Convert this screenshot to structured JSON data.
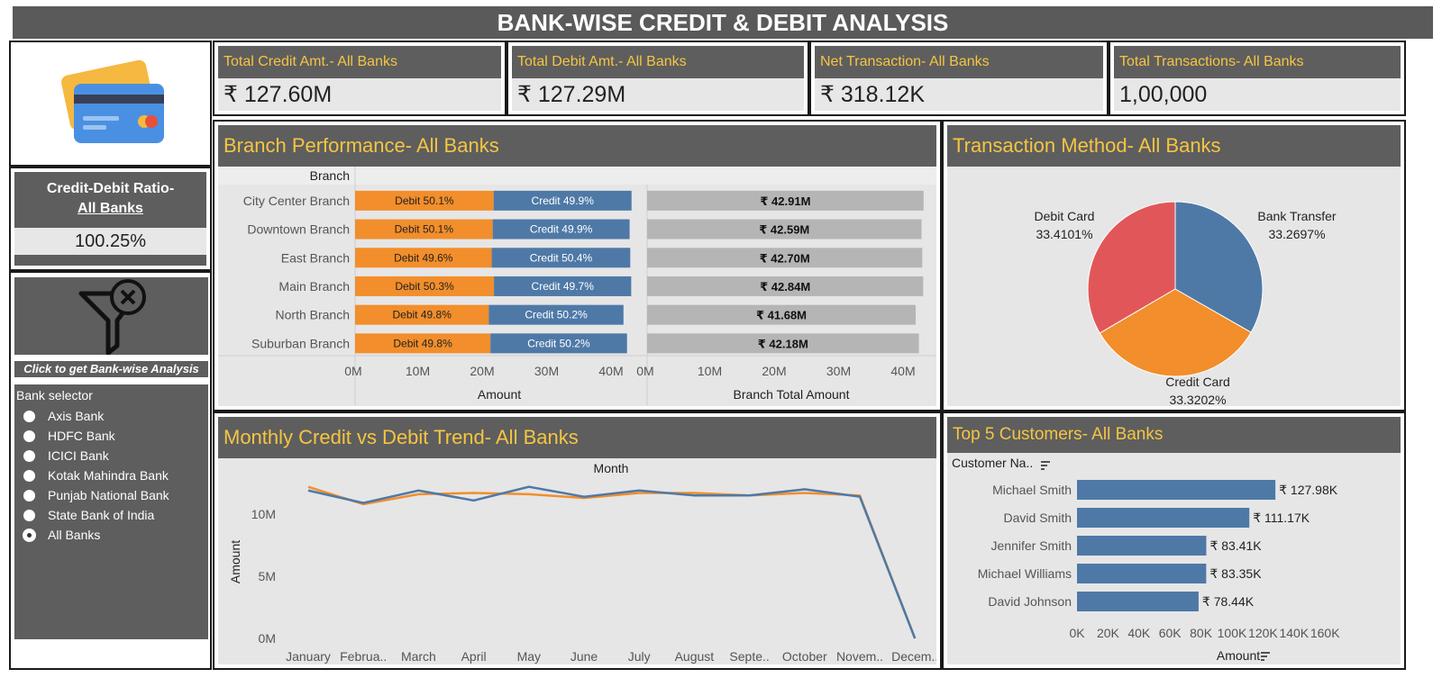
{
  "header": {
    "title": "BANK-WISE CREDIT & DEBIT ANALYSIS"
  },
  "kpis": [
    {
      "label": "Total Credit Amt.- All Banks",
      "value": "₹ 127.60M"
    },
    {
      "label": "Total Debit Amt.- All Banks",
      "value": "₹ 127.29M"
    },
    {
      "label": "Net Transaction- All Banks",
      "value": "₹ 318.12K"
    },
    {
      "label": "Total Transactions- All Banks",
      "value": "1,00,000"
    }
  ],
  "ratio": {
    "label_line1": "Credit-Debit Ratio-",
    "label_line2": "All Banks",
    "value": "100.25%"
  },
  "filter": {
    "caption": "Click to get Bank-wise Analysis",
    "selector_label": "Bank selector",
    "options": [
      "Axis Bank",
      "HDFC Bank",
      "ICICI Bank",
      "Kotak Mahindra Bank",
      "Punjab National Bank",
      "State Bank of India",
      "All Banks"
    ],
    "selected": "All Banks"
  },
  "colors": {
    "credit": "#4e79a7",
    "debit": "#f28e2b",
    "total": "#b5b5b5",
    "pie_debit_card": "#e15759",
    "accent": "#f5c542"
  },
  "branch": {
    "title": "Branch Performance- All Banks",
    "header": "Branch",
    "xlabel_left": "Amount",
    "xlabel_right": "Branch Total Amount",
    "ticks": [
      "0M",
      "10M",
      "20M",
      "30M",
      "40M"
    ],
    "rows": [
      {
        "name": "City Center Branch",
        "debit_label": "Debit 50.1%",
        "credit_label": "Credit 49.9%",
        "debit": 21.5,
        "credit": 21.4,
        "total": 42.91,
        "total_label": "₹ 42.91M"
      },
      {
        "name": "Downtown Branch",
        "debit_label": "Debit 50.1%",
        "credit_label": "Credit 49.9%",
        "debit": 21.35,
        "credit": 21.25,
        "total": 42.59,
        "total_label": "₹ 42.59M"
      },
      {
        "name": "East Branch",
        "debit_label": "Debit 49.6%",
        "credit_label": "Credit 50.4%",
        "debit": 21.2,
        "credit": 21.5,
        "total": 42.7,
        "total_label": "₹ 42.70M"
      },
      {
        "name": "Main Branch",
        "debit_label": "Debit 50.3%",
        "credit_label": "Credit 49.7%",
        "debit": 21.55,
        "credit": 21.3,
        "total": 42.84,
        "total_label": "₹ 42.84M"
      },
      {
        "name": "North Branch",
        "debit_label": "Debit 49.8%",
        "credit_label": "Credit 50.2%",
        "debit": 20.75,
        "credit": 20.9,
        "total": 41.68,
        "total_label": "₹ 41.68M"
      },
      {
        "name": "Suburban Branch",
        "debit_label": "Debit 49.8%",
        "credit_label": "Credit 50.2%",
        "debit": 21.0,
        "credit": 21.2,
        "total": 42.18,
        "total_label": "₹ 42.18M"
      }
    ]
  },
  "pie": {
    "title": "Transaction Method- All Banks",
    "slices": [
      {
        "name": "Bank Transfer",
        "value": 33.2697,
        "label": "33.2697%"
      },
      {
        "name": "Credit Card",
        "value": 33.3202,
        "label": "33.3202%"
      },
      {
        "name": "Debit Card",
        "value": 33.4101,
        "label": "33.4101%"
      }
    ]
  },
  "trend": {
    "title": "Monthly Credit vs Debit Trend- All Banks",
    "xlabel": "Month",
    "ylabel": "Amount",
    "yticks": [
      "0M",
      "5M",
      "10M"
    ],
    "months": [
      "January",
      "Februa..",
      "March",
      "April",
      "May",
      "June",
      "July",
      "August",
      "Septe..",
      "October",
      "Novem..",
      "Decem.."
    ],
    "credit": [
      11.9,
      10.9,
      11.9,
      11.1,
      12.2,
      11.4,
      11.9,
      11.5,
      11.5,
      12.0,
      11.4,
      0.0
    ],
    "debit": [
      12.2,
      10.8,
      11.6,
      11.7,
      11.6,
      11.3,
      11.7,
      11.7,
      11.5,
      11.7,
      11.5,
      0.0
    ]
  },
  "customers": {
    "title": "Top 5 Customers- All Banks",
    "header": "Customer Na..",
    "xlabel": "Amount",
    "ticks": [
      "0K",
      "20K",
      "40K",
      "60K",
      "80K",
      "100K",
      "120K",
      "140K",
      "160K"
    ],
    "rows": [
      {
        "name": "Michael Smith",
        "value": 127.98,
        "label": "₹ 127.98K"
      },
      {
        "name": "David Smith",
        "value": 111.17,
        "label": "₹ 111.17K"
      },
      {
        "name": "Jennifer Smith",
        "value": 83.41,
        "label": "₹ 83.41K"
      },
      {
        "name": "Michael Williams",
        "value": 83.35,
        "label": "₹ 83.35K"
      },
      {
        "name": "David Johnson",
        "value": 78.44,
        "label": "₹ 78.44K"
      }
    ]
  },
  "chart_data": [
    {
      "type": "bar",
      "title": "Branch Performance- All Banks",
      "categories": [
        "City Center Branch",
        "Downtown Branch",
        "East Branch",
        "Main Branch",
        "North Branch",
        "Suburban Branch"
      ],
      "series": [
        {
          "name": "Debit",
          "values": [
            21.5,
            21.35,
            21.2,
            21.55,
            20.75,
            21.0
          ]
        },
        {
          "name": "Credit",
          "values": [
            21.4,
            21.25,
            21.5,
            21.3,
            20.9,
            21.2
          ]
        }
      ],
      "xlabel": "Amount",
      "ylabel": "Branch",
      "xlim": [
        0,
        43
      ]
    },
    {
      "type": "bar",
      "title": "",
      "categories": [
        "City Center Branch",
        "Downtown Branch",
        "East Branch",
        "Main Branch",
        "North Branch",
        "Suburban Branch"
      ],
      "values": [
        42.91,
        42.59,
        42.7,
        42.84,
        41.68,
        42.18
      ],
      "xlabel": "Branch Total Amount",
      "xlim": [
        0,
        43
      ]
    },
    {
      "type": "pie",
      "title": "Transaction Method- All Banks",
      "categories": [
        "Bank Transfer",
        "Credit Card",
        "Debit Card"
      ],
      "values": [
        33.2697,
        33.3202,
        33.4101
      ]
    },
    {
      "type": "line",
      "title": "Monthly Credit vs Debit Trend- All Banks",
      "x": [
        "January",
        "Februa..",
        "March",
        "April",
        "May",
        "June",
        "July",
        "August",
        "Septe..",
        "October",
        "Novem..",
        "Decem.."
      ],
      "series": [
        {
          "name": "Credit",
          "values": [
            11.9,
            10.9,
            11.9,
            11.1,
            12.2,
            11.4,
            11.9,
            11.5,
            11.5,
            12.0,
            11.4,
            0.0
          ]
        },
        {
          "name": "Debit",
          "values": [
            12.2,
            10.8,
            11.6,
            11.7,
            11.6,
            11.3,
            11.7,
            11.7,
            11.5,
            11.7,
            11.5,
            0.0
          ]
        }
      ],
      "xlabel": "Month",
      "ylabel": "Amount",
      "ylim": [
        0,
        13
      ]
    },
    {
      "type": "bar",
      "title": "Top 5 Customers- All Banks",
      "categories": [
        "Michael Smith",
        "David Smith",
        "Jennifer Smith",
        "Michael Williams",
        "David Johnson"
      ],
      "values": [
        127.98,
        111.17,
        83.41,
        83.35,
        78.44
      ],
      "xlabel": "Amount",
      "xlim": [
        0,
        160
      ]
    }
  ]
}
